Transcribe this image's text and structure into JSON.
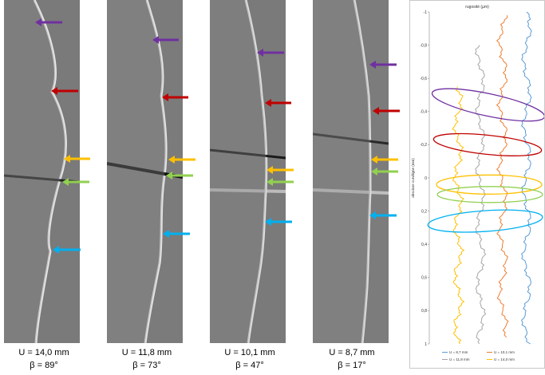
{
  "panels": [
    {
      "u_label": "U = 14,0 mm",
      "beta_label": "β = 89°"
    },
    {
      "u_label": "U = 11,8 mm",
      "beta_label": "β = 73°"
    },
    {
      "u_label": "U = 10,1 mm",
      "beta_label": "β = 47°"
    },
    {
      "u_label": "U = 8,7 mm",
      "beta_label": "β = 17°"
    }
  ],
  "arrow_colors": {
    "purple": "#7030a0",
    "red": "#c00000",
    "orange": "#ffc000",
    "green": "#92d050",
    "blue": "#00b0f0"
  },
  "chart_data": {
    "type": "line",
    "title": "rugosité (µm)",
    "ylabel": "abscisse curviligne (mm)",
    "y_ticks": [
      "-1",
      "-0,8",
      "-0,6",
      "-0,4",
      "-0,2",
      "0",
      "0,2",
      "0,4",
      "0,6",
      "0,8",
      "1"
    ],
    "ylim": [
      -1,
      1
    ],
    "y_inverted": true,
    "series": [
      {
        "name": "U = 8,7 mm",
        "color": "#5b9bd5"
      },
      {
        "name": "U = 10,1 mm",
        "color": "#ed7d31"
      },
      {
        "name": "U = 11,8 mm",
        "color": "#a5a5a5"
      },
      {
        "name": "U = 14,0 mm",
        "color": "#ffc000"
      }
    ],
    "ellipse_colors": [
      "#7030a0",
      "#c00000",
      "#ffc000",
      "#92d050",
      "#00b0f0"
    ]
  }
}
